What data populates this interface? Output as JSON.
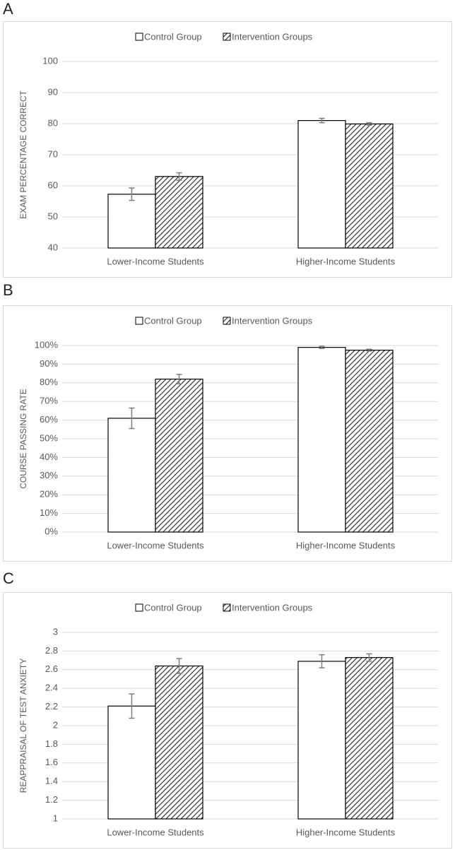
{
  "chart_data": [
    {
      "type": "bar",
      "label": "A",
      "y_label": "EXAM PERCENTAGE CORRECT",
      "categories": [
        "Lower-Income Students",
        "Higher-Income Students"
      ],
      "series": [
        {
          "name": "Control Group",
          "color": "#ffffff",
          "hatch": false,
          "values": [
            57.3,
            81.0
          ],
          "errors": [
            2.0,
            0.7
          ]
        },
        {
          "name": "Intervention Groups",
          "color": "#ffffff",
          "hatch": true,
          "values": [
            63.0,
            79.9
          ],
          "errors": [
            1.2,
            0.4
          ]
        }
      ],
      "ylim": [
        40,
        100
      ],
      "yticks": [
        40,
        50,
        60,
        70,
        80,
        90,
        100
      ],
      "grid": true,
      "legend": "top"
    },
    {
      "type": "bar",
      "label": "B",
      "y_label": "COURSE PASSING RATE",
      "categories": [
        "Lower-Income Students",
        "Higher-Income Students"
      ],
      "series": [
        {
          "name": "Control Group",
          "color": "#ffffff",
          "hatch": false,
          "values": [
            61,
            99
          ],
          "errors": [
            5.5,
            0.6
          ]
        },
        {
          "name": "Intervention Groups",
          "color": "#ffffff",
          "hatch": true,
          "values": [
            82,
            97.5
          ],
          "errors": [
            2.5,
            0.5
          ]
        }
      ],
      "ylim": [
        0,
        100
      ],
      "yticks": [
        {
          "value": 0,
          "label": "0%"
        },
        {
          "value": 10,
          "label": "10%"
        },
        {
          "value": 20,
          "label": "20%"
        },
        {
          "value": 30,
          "label": "30%"
        },
        {
          "value": 40,
          "label": "40%"
        },
        {
          "value": 50,
          "label": "50%"
        },
        {
          "value": 60,
          "label": "60%"
        },
        {
          "value": 70,
          "label": "70%"
        },
        {
          "value": 80,
          "label": "80%"
        },
        {
          "value": 90,
          "label": "90%"
        },
        {
          "value": 100,
          "label": "100%"
        }
      ],
      "grid": true,
      "legend": "top"
    },
    {
      "type": "bar",
      "label": "C",
      "y_label": "REAPPRAISAL OF TEST ANXIETY",
      "categories": [
        "Lower-Income Students",
        "Higher-Income Students"
      ],
      "series": [
        {
          "name": "Control Group",
          "color": "#ffffff",
          "hatch": false,
          "values": [
            2.21,
            2.69
          ],
          "errors": [
            0.13,
            0.07
          ]
        },
        {
          "name": "Intervention Groups",
          "color": "#ffffff",
          "hatch": true,
          "values": [
            2.64,
            2.73
          ],
          "errors": [
            0.08,
            0.04
          ]
        }
      ],
      "ylim": [
        1,
        3
      ],
      "yticks": [
        1,
        1.2,
        1.4,
        1.6,
        1.8,
        2,
        2.2,
        2.4,
        2.6,
        2.8,
        3
      ],
      "grid": true,
      "legend": "top"
    }
  ]
}
